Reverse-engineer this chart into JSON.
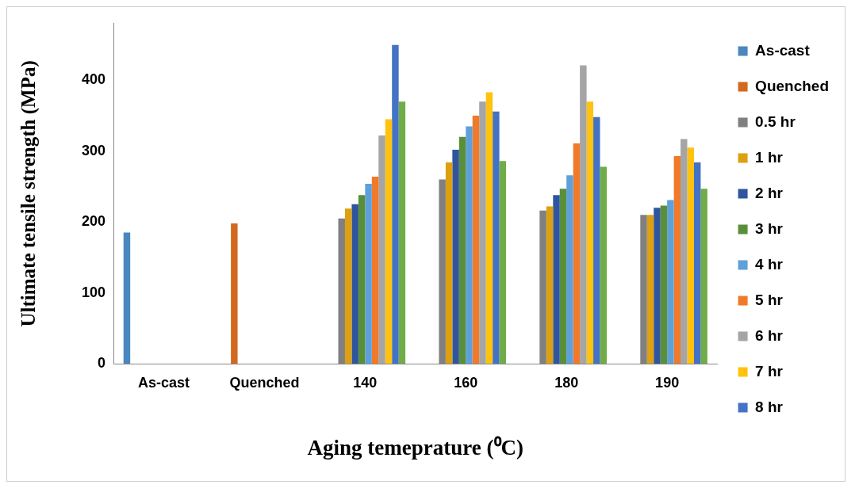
{
  "chart_data": {
    "type": "bar",
    "xlabel": "Aging temeprature (⁰C)",
    "ylabel": "Ultimate tensile strength (MPa)",
    "categories": [
      "As-cast",
      "Quenched",
      "140",
      "160",
      "180",
      "190"
    ],
    "series": [
      {
        "name": "As-cast",
        "color": "#4a86bf",
        "values": [
          185,
          null,
          null,
          null,
          null,
          null
        ]
      },
      {
        "name": "Quenched",
        "color": "#d2691e",
        "values": [
          null,
          198,
          null,
          null,
          null,
          null
        ]
      },
      {
        "name": "0.5 hr",
        "color": "#808080",
        "values": [
          null,
          null,
          205,
          260,
          216,
          210
        ]
      },
      {
        "name": "1 hr",
        "color": "#dca010",
        "values": [
          null,
          null,
          219,
          284,
          222,
          210
        ]
      },
      {
        "name": "2 hr",
        "color": "#2f559e",
        "values": [
          null,
          null,
          225,
          302,
          238,
          220
        ]
      },
      {
        "name": "3 hr",
        "color": "#5a8f3a",
        "values": [
          null,
          null,
          238,
          320,
          247,
          223
        ]
      },
      {
        "name": "4 hr",
        "color": "#5ea0da",
        "values": [
          null,
          null,
          254,
          335,
          266,
          231
        ]
      },
      {
        "name": "5 hr",
        "color": "#f07a2a",
        "values": [
          null,
          null,
          264,
          350,
          311,
          293
        ]
      },
      {
        "name": "6 hr",
        "color": "#a5a5a5",
        "values": [
          null,
          null,
          322,
          370,
          421,
          317
        ]
      },
      {
        "name": "7 hr",
        "color": "#ffc20e",
        "values": [
          null,
          null,
          345,
          383,
          370,
          305
        ]
      },
      {
        "name": "8 hr",
        "color": "#4472c4",
        "values": [
          null,
          null,
          450,
          356,
          348,
          284
        ]
      },
      {
        "color": "#70ad47",
        "values": [
          null,
          null,
          370,
          286,
          278,
          247
        ]
      }
    ],
    "ylim": [
      0,
      480
    ],
    "yticks": [
      0,
      100,
      200,
      300,
      400
    ],
    "grid": false,
    "legend": "right"
  }
}
